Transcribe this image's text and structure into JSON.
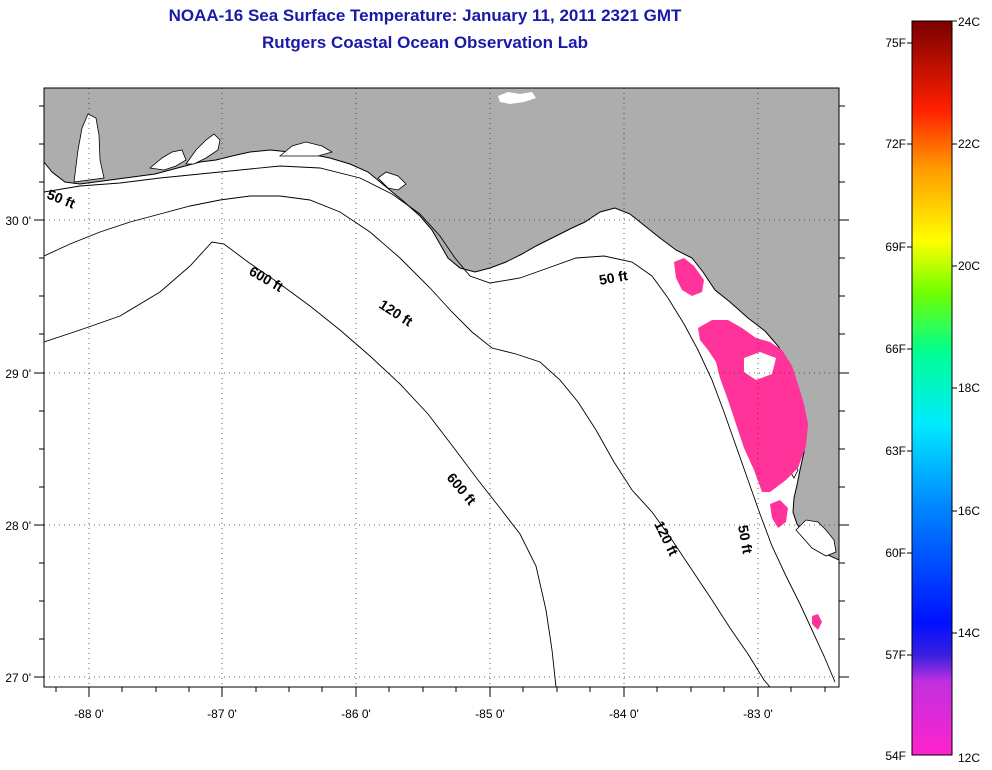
{
  "header": {
    "title": "NOAA-16 Sea Surface Temperature:  January 11, 2011 2321 GMT",
    "subtitle": "Rutgers Coastal Ocean Observation Lab"
  },
  "map": {
    "lon_labels": [
      "-88 0'",
      "-87 0'",
      "-86 0'",
      "-85 0'",
      "-84 0'",
      "-83 0'"
    ],
    "lat_labels": [
      "30 0'",
      "29 0'",
      "28 0'",
      "27 0'"
    ],
    "contour_labels": [
      "50 ft",
      "600 ft",
      "120 ft",
      "50 ft",
      "600 ft",
      "120 ft",
      "50 ft"
    ],
    "colors": {
      "land": "#adadad",
      "ocean": "#ffffff",
      "sst_patch": "#ff3399",
      "contour": "#000000"
    }
  },
  "colorbar": {
    "fahrenheit_labels": [
      "75F",
      "72F",
      "69F",
      "66F",
      "63F",
      "60F",
      "57F",
      "54F"
    ],
    "celsius_labels": [
      "24C",
      "22C",
      "20C",
      "18C",
      "16C",
      "14C",
      "12C"
    ],
    "range_c": [
      12,
      24
    ]
  }
}
